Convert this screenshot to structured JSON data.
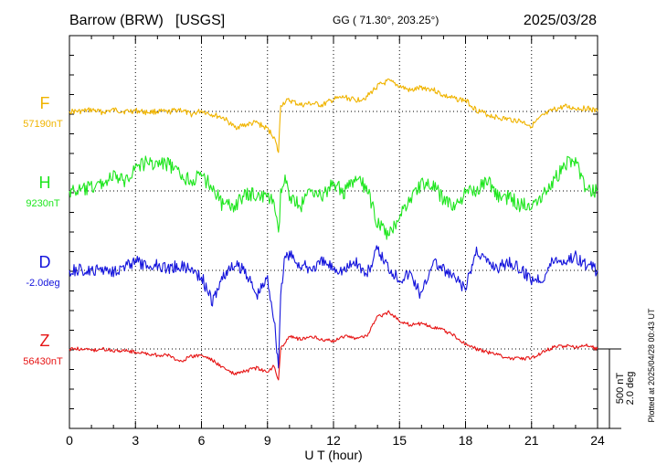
{
  "header": {
    "station": "Barrow (BRW)",
    "agency": "[USGS]",
    "coords": "GG ( 71.30°, 203.25°)",
    "date": "2025/03/28"
  },
  "plotted_note": "Plotted at 2025/04/28 00:43 UT",
  "scale_bar": {
    "line1": "500 nT",
    "line2": "2.0 deg"
  },
  "chart_data": {
    "type": "line",
    "xlabel": "U T (hour)",
    "xlim": [
      0,
      24
    ],
    "x_ticks": [
      "0",
      "3",
      "6",
      "9",
      "12",
      "15",
      "18",
      "21",
      "24"
    ],
    "grid": true,
    "series": [
      {
        "name": "F",
        "baseline": "57190nT",
        "color": "#f0b400",
        "x": [
          0,
          0.5,
          1,
          1.5,
          2,
          2.5,
          3,
          3.5,
          4,
          4.5,
          5,
          5.5,
          6,
          6.5,
          7,
          7.5,
          8,
          8.5,
          9,
          9.3,
          9.5,
          9.6,
          9.8,
          10,
          10.5,
          11,
          11.5,
          12,
          12.5,
          13,
          13.5,
          14,
          14.5,
          15,
          15.5,
          16,
          16.5,
          17,
          17.5,
          18,
          18.5,
          19,
          19.5,
          20,
          20.5,
          21,
          21.5,
          22,
          22.5,
          23,
          23.5,
          24
        ],
        "y": [
          0,
          0,
          10,
          -5,
          10,
          0,
          5,
          -5,
          0,
          -5,
          15,
          -20,
          5,
          -20,
          -40,
          -100,
          -85,
          -70,
          -110,
          -160,
          -260,
          40,
          60,
          70,
          40,
          50,
          40,
          75,
          90,
          70,
          90,
          160,
          190,
          160,
          130,
          150,
          140,
          100,
          80,
          70,
          10,
          -20,
          -40,
          -50,
          -60,
          -90,
          -30,
          10,
          30,
          20,
          20,
          0
        ]
      },
      {
        "name": "H",
        "baseline": "9230nT",
        "color": "#1ee61e",
        "x": [
          0,
          0.5,
          1,
          1.5,
          2,
          2.5,
          3,
          3.5,
          4,
          4.5,
          5,
          5.5,
          6,
          6.5,
          7,
          7.5,
          8,
          8.5,
          9,
          9.3,
          9.5,
          9.6,
          9.8,
          10,
          10.5,
          11,
          11.5,
          12,
          12.5,
          13,
          13.5,
          14,
          14.5,
          15,
          15.5,
          16,
          16.5,
          17,
          17.5,
          18,
          18.5,
          19,
          19.5,
          20,
          20.5,
          21,
          21.5,
          22,
          22.5,
          23,
          23.5,
          24
        ],
        "y": [
          0,
          0,
          20,
          50,
          90,
          60,
          150,
          180,
          170,
          170,
          100,
          70,
          90,
          30,
          -100,
          -90,
          -30,
          -20,
          -50,
          -60,
          -300,
          -20,
          60,
          -20,
          -100,
          20,
          -40,
          50,
          -10,
          70,
          20,
          -200,
          -290,
          -150,
          -50,
          50,
          30,
          -50,
          -100,
          -20,
          10,
          70,
          -40,
          -40,
          -90,
          -80,
          -20,
          60,
          170,
          200,
          -10,
          0
        ]
      },
      {
        "name": "D",
        "baseline": "-2.0deg",
        "color": "#1414dc",
        "x": [
          0,
          0.5,
          1,
          1.5,
          2,
          2.5,
          3,
          3.5,
          4,
          4.5,
          5,
          5.5,
          6,
          6.5,
          7,
          7.5,
          8,
          8.5,
          9,
          9.3,
          9.5,
          9.6,
          9.8,
          10,
          10.5,
          11,
          11.5,
          12,
          12.5,
          13,
          13.5,
          14,
          14.5,
          15,
          15.5,
          16,
          16.5,
          17,
          17.5,
          18,
          18.5,
          19,
          19.5,
          20,
          20.5,
          21,
          21.5,
          22,
          22.5,
          23,
          23.5,
          24
        ],
        "y": [
          0,
          0,
          -10,
          10,
          0,
          20,
          60,
          20,
          40,
          10,
          30,
          10,
          -40,
          -200,
          -30,
          30,
          0,
          -160,
          -50,
          -300,
          -600,
          -140,
          80,
          100,
          30,
          10,
          50,
          20,
          0,
          60,
          -30,
          130,
          20,
          -50,
          -20,
          -160,
          60,
          0,
          -50,
          -120,
          130,
          50,
          20,
          60,
          0,
          -50,
          -50,
          70,
          60,
          90,
          30,
          0
        ]
      },
      {
        "name": "Z",
        "baseline": "56430nT",
        "color": "#e61414",
        "x": [
          0,
          0.5,
          1,
          1.5,
          2,
          2.5,
          3,
          3.5,
          4,
          4.5,
          5,
          5.5,
          6,
          6.5,
          7,
          7.5,
          8,
          8.5,
          9,
          9.3,
          9.5,
          9.6,
          9.8,
          10,
          10.5,
          11,
          11.5,
          12,
          12.5,
          13,
          13.5,
          14,
          14.5,
          15,
          15.5,
          16,
          16.5,
          17,
          17.5,
          18,
          18.5,
          19,
          19.5,
          20,
          20.5,
          21,
          21.5,
          22,
          22.5,
          23,
          23.5,
          24
        ],
        "y": [
          0,
          0,
          -10,
          0,
          -10,
          -10,
          -20,
          -30,
          -40,
          -40,
          -80,
          -50,
          -40,
          -70,
          -120,
          -160,
          -140,
          -120,
          -150,
          -100,
          -200,
          0,
          40,
          80,
          60,
          80,
          60,
          50,
          80,
          70,
          80,
          200,
          230,
          180,
          150,
          160,
          140,
          120,
          80,
          30,
          0,
          -20,
          -40,
          -60,
          -60,
          -60,
          -20,
          10,
          20,
          10,
          20,
          0
        ]
      }
    ]
  }
}
